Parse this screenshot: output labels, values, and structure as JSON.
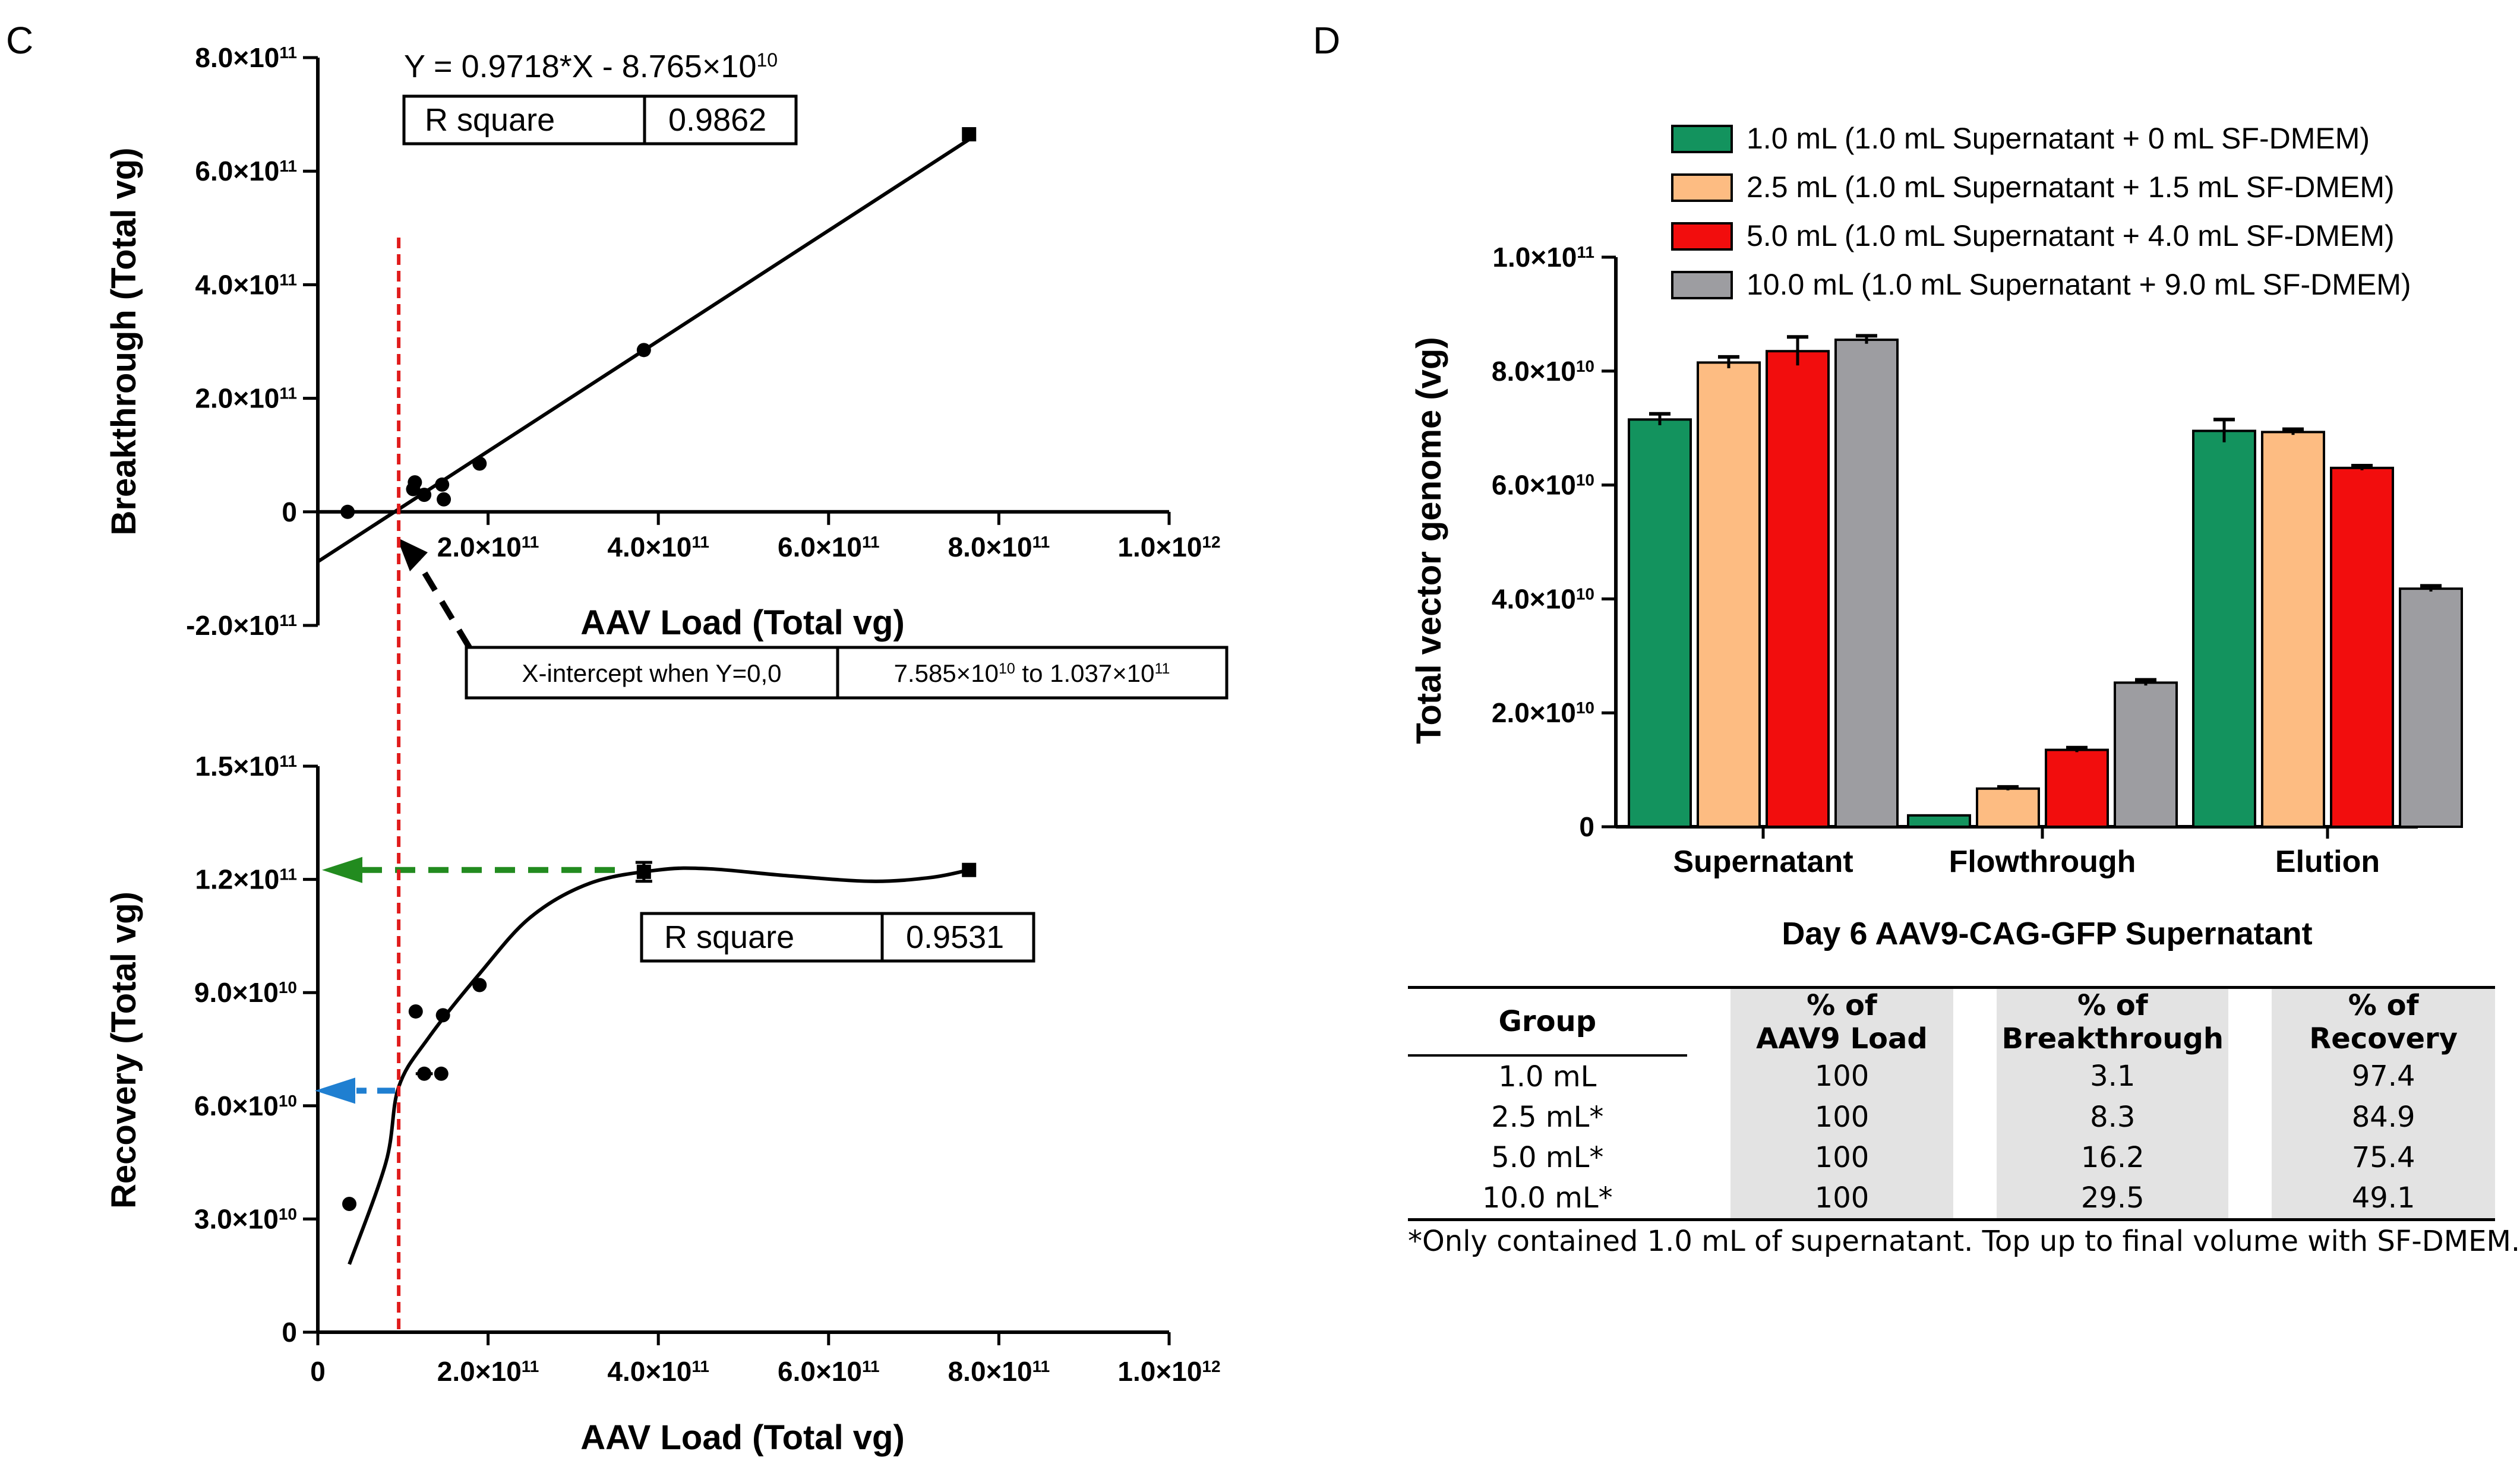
{
  "panels": {
    "c_label": "C",
    "d_label": "D"
  },
  "chart_data": [
    {
      "id": "c_top",
      "type": "scatter",
      "xlabel": "AAV Load (Total vg)",
      "ylabel": "Breakthrough (Total vg)",
      "xlim": [
        0,
        1000000000000
      ],
      "ylim": [
        -200000000000,
        800000000000
      ],
      "x_ticks": [
        "0",
        "2.0×10<sup>11</sup>",
        "4.0×10<sup>11</sup>",
        "6.0×10<sup>11</sup>",
        "8.0×10<sup>11</sup>",
        "1.0×10<sup>12</sup>"
      ],
      "x_tick_values": [
        0,
        200000000000,
        400000000000,
        600000000000,
        800000000000,
        1000000000000
      ],
      "x_tick_labels_shown": [
        false,
        true,
        true,
        true,
        true,
        true
      ],
      "y_ticks": [
        "-2.0×10<sup>11</sup>",
        "0",
        "2.0×10<sup>11</sup>",
        "4.0×10<sup>11</sup>",
        "6.0×10<sup>11</sup>",
        "8.0×10<sup>11</sup>"
      ],
      "y_tick_values": [
        -200000000000,
        0,
        200000000000,
        400000000000,
        600000000000,
        800000000000
      ],
      "points": [
        {
          "x": 35000000000,
          "y": 0
        },
        {
          "x": 112000000000,
          "y": 40000000000
        },
        {
          "x": 114000000000,
          "y": 52000000000
        },
        {
          "x": 125000000000,
          "y": 30000000000
        },
        {
          "x": 146000000000,
          "y": 48000000000
        },
        {
          "x": 148000000000,
          "y": 22000000000
        },
        {
          "x": 190000000000,
          "y": 85000000000
        },
        {
          "x": 383000000000,
          "y": 285000000000
        },
        {
          "x": 765000000000,
          "y": 665000000000
        }
      ],
      "fit": {
        "slope": 0.9718,
        "intercept": -87650000000,
        "x_range": [
          0,
          765000000000
        ]
      },
      "equation": "Y = 0.9718*X - 8.765×10<sup>10</sup>",
      "r_square_label": "R square",
      "r_square_value": "0.9862",
      "xintercept_label": "X-intercept when Y=0,0",
      "xintercept_value": "7.585×10<sup>10</sup> to 1.037×10<sup>11</sup>",
      "red_line_x": 95000000000
    },
    {
      "id": "c_bottom",
      "type": "scatter",
      "xlabel": "AAV Load (Total vg)",
      "ylabel": "Recovery (Total vg)",
      "xlim": [
        0,
        1000000000000
      ],
      "ylim": [
        0,
        150000000000
      ],
      "x_ticks": [
        "0",
        "2.0×10<sup>11</sup>",
        "4.0×10<sup>11</sup>",
        "6.0×10<sup>11</sup>",
        "8.0×10<sup>11</sup>",
        "1.0×10<sup>12</sup>"
      ],
      "x_tick_values": [
        0,
        200000000000,
        400000000000,
        600000000000,
        800000000000,
        1000000000000
      ],
      "y_ticks": [
        "0",
        "3.0×10<sup>10</sup>",
        "6.0×10<sup>10</sup>",
        "9.0×10<sup>10</sup>",
        "1.2×10<sup>11</sup>",
        "1.5×10<sup>11</sup>"
      ],
      "y_tick_values": [
        0,
        30000000000,
        60000000000,
        90000000000,
        120000000000,
        150000000000
      ],
      "points": [
        {
          "x": 37000000000,
          "y": 34000000000
        },
        {
          "x": 115000000000,
          "y": 85000000000
        },
        {
          "x": 125000000000,
          "y": 68500000000,
          "xerr": 10000000000
        },
        {
          "x": 145000000000,
          "y": 68500000000,
          "xerr": 8000000000
        },
        {
          "x": 147000000000,
          "y": 84000000000
        },
        {
          "x": 190000000000,
          "y": 92000000000
        },
        {
          "x": 383000000000,
          "y": 122000000000,
          "yerr": 2500000000
        },
        {
          "x": 765000000000,
          "y": 122500000000
        }
      ],
      "curve": [
        [
          37000000000,
          18000000000
        ],
        [
          80000000000,
          45000000000
        ],
        [
          95000000000,
          65000000000
        ],
        [
          130000000000,
          78000000000
        ],
        [
          190000000000,
          95000000000
        ],
        [
          250000000000,
          110000000000
        ],
        [
          320000000000,
          119000000000
        ],
        [
          400000000000,
          122500000000
        ],
        [
          460000000000,
          122800000000
        ],
        [
          550000000000,
          121000000000
        ],
        [
          650000000000,
          119500000000
        ],
        [
          720000000000,
          120500000000
        ],
        [
          765000000000,
          122500000000
        ]
      ],
      "r_square_label": "R square",
      "r_square_value": "0.9531",
      "green_arrow_y": 122500000000,
      "blue_arrow_y": 64000000000,
      "red_line_x": 95000000000
    },
    {
      "id": "d",
      "type": "bar",
      "title": "Day 6 AAV9-CAG-GFP Supernatant",
      "ylabel": "Total vector genome (vg)",
      "xlabel": "",
      "categories": [
        "Supernatant",
        "Flowthrough",
        "Elution"
      ],
      "ylim": [
        0,
        100000000000
      ],
      "y_ticks": [
        "0",
        "2.0×10<sup>10</sup>",
        "4.0×10<sup>10</sup>",
        "6.0×10<sup>10</sup>",
        "8.0×10<sup>10</sup>",
        "1.0×10<sup>11</sup>"
      ],
      "y_tick_values": [
        0,
        20000000000,
        40000000000,
        60000000000,
        80000000000,
        100000000000
      ],
      "series": [
        {
          "name": "1.0 mL (1.0 mL Supernatant + 0 mL SF-DMEM)",
          "color": "#13935e",
          "values": [
            71500000000,
            2000000000,
            69500000000
          ],
          "errors": [
            1000000000,
            0,
            2000000000
          ]
        },
        {
          "name": "2.5 mL (1.0 mL Supernatant + 1.5 mL SF-DMEM)",
          "color": "#fdbc82",
          "values": [
            81500000000,
            6700000000,
            69300000000
          ],
          "errors": [
            1000000000,
            300000000,
            500000000
          ]
        },
        {
          "name": "5.0 mL (1.0 mL Supernatant + 4.0 mL SF-DMEM)",
          "color": "#f20d0d",
          "values": [
            83500000000,
            13500000000,
            63000000000
          ],
          "errors": [
            2500000000,
            400000000,
            400000000
          ]
        },
        {
          "name": "10.0 mL (1.0 mL Supernatant + 9.0 mL SF-DMEM)",
          "color": "#9d9da1",
          "values": [
            85500000000,
            25300000000,
            41800000000
          ],
          "errors": [
            700000000,
            500000000,
            500000000
          ]
        }
      ]
    }
  ],
  "table": {
    "headers": [
      [
        "Group"
      ],
      [
        "% of",
        "AAV9 Load"
      ],
      [
        "% of",
        "Breakthrough"
      ],
      [
        "% of",
        "Recovery"
      ]
    ],
    "rows": [
      [
        "1.0 mL",
        "100",
        "3.1",
        "97.4"
      ],
      [
        "2.5 mL*",
        "100",
        "8.3",
        "84.9"
      ],
      [
        "5.0 mL*",
        "100",
        "16.2",
        "75.4"
      ],
      [
        "10.0 mL*",
        "100",
        "29.5",
        "49.1"
      ]
    ],
    "footnote": "*Only contained 1.0 mL of supernatant. Top up to final volume with SF-DMEM."
  }
}
